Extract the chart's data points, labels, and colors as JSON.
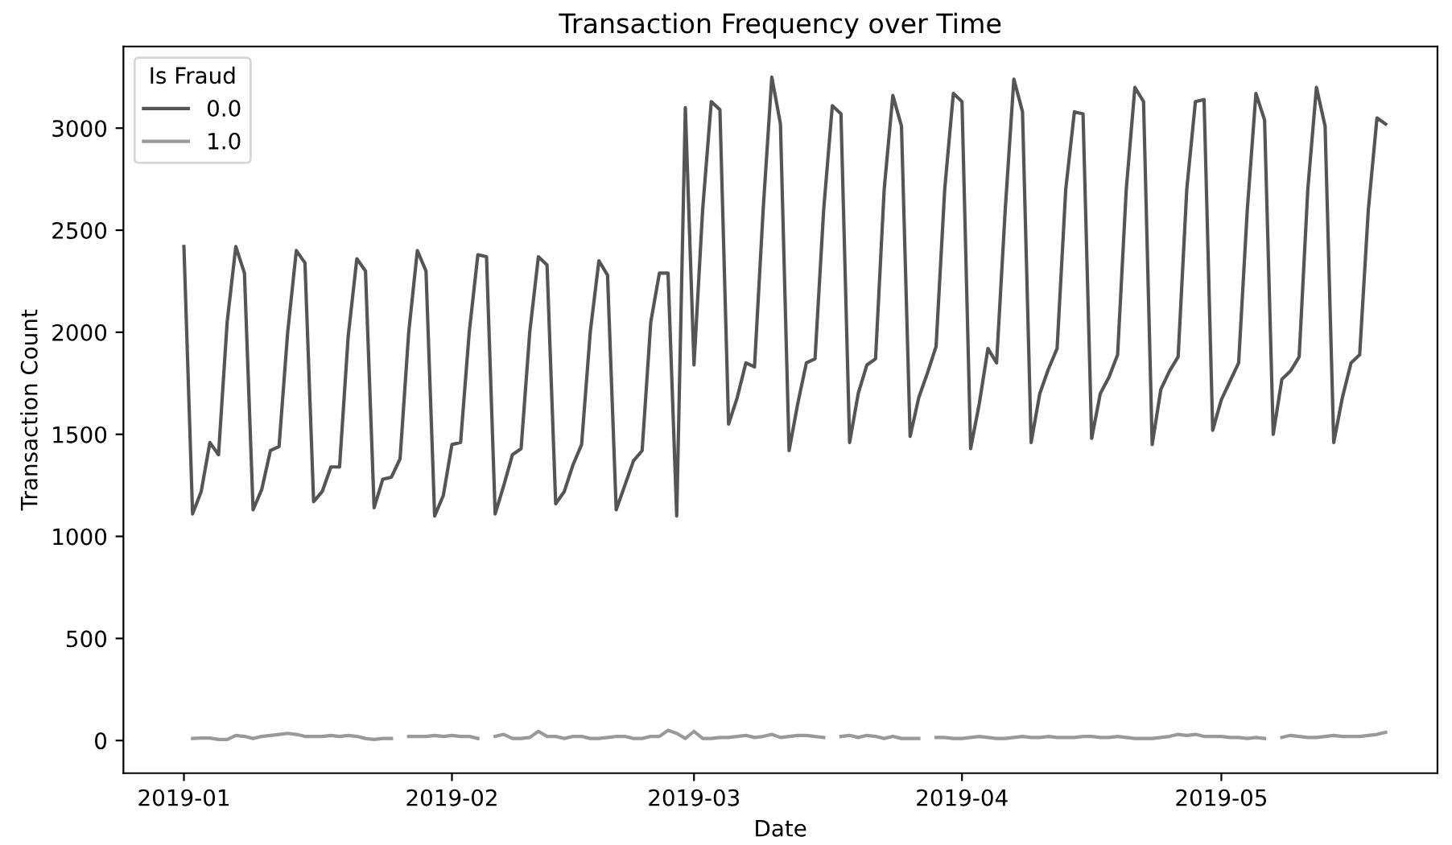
{
  "chart_data": {
    "type": "line",
    "title": "Transaction Frequency over Time",
    "xlabel": "Date",
    "ylabel": "Transaction Count",
    "legend_title": "Is Fraud",
    "legend": "top left",
    "grid": false,
    "x": [
      "2019-01-01",
      "2019-01-02",
      "2019-01-03",
      "2019-01-04",
      "2019-01-05",
      "2019-01-06",
      "2019-01-07",
      "2019-01-08",
      "2019-01-09",
      "2019-01-10",
      "2019-01-11",
      "2019-01-12",
      "2019-01-13",
      "2019-01-14",
      "2019-01-15",
      "2019-01-16",
      "2019-01-17",
      "2019-01-18",
      "2019-01-19",
      "2019-01-20",
      "2019-01-21",
      "2019-01-22",
      "2019-01-23",
      "2019-01-24",
      "2019-01-25",
      "2019-01-26",
      "2019-01-27",
      "2019-01-28",
      "2019-01-29",
      "2019-01-30",
      "2019-01-31",
      "2019-02-01",
      "2019-02-02",
      "2019-02-03",
      "2019-02-04",
      "2019-02-05",
      "2019-02-06",
      "2019-02-07",
      "2019-02-08",
      "2019-02-09",
      "2019-02-10",
      "2019-02-11",
      "2019-02-12",
      "2019-02-13",
      "2019-02-14",
      "2019-02-15",
      "2019-02-16",
      "2019-02-17",
      "2019-02-18",
      "2019-02-19",
      "2019-02-20",
      "2019-02-21",
      "2019-02-22",
      "2019-02-23",
      "2019-02-24",
      "2019-02-25",
      "2019-02-26",
      "2019-02-27",
      "2019-02-28",
      "2019-03-01",
      "2019-03-02",
      "2019-03-03",
      "2019-03-04",
      "2019-03-05",
      "2019-03-06",
      "2019-03-07",
      "2019-03-08",
      "2019-03-09",
      "2019-03-10",
      "2019-03-11",
      "2019-03-12",
      "2019-03-13",
      "2019-03-14",
      "2019-03-15",
      "2019-03-16",
      "2019-03-17",
      "2019-03-18",
      "2019-03-19",
      "2019-03-20",
      "2019-03-21",
      "2019-03-22",
      "2019-03-23",
      "2019-03-24",
      "2019-03-25",
      "2019-03-26",
      "2019-03-27",
      "2019-03-28",
      "2019-03-29",
      "2019-03-30",
      "2019-03-31",
      "2019-04-01",
      "2019-04-02",
      "2019-04-03",
      "2019-04-04",
      "2019-04-05",
      "2019-04-06",
      "2019-04-07",
      "2019-04-08",
      "2019-04-09",
      "2019-04-10",
      "2019-04-11",
      "2019-04-12",
      "2019-04-13",
      "2019-04-14",
      "2019-04-15",
      "2019-04-16",
      "2019-04-17",
      "2019-04-18",
      "2019-04-19",
      "2019-04-20",
      "2019-04-21",
      "2019-04-22",
      "2019-04-23",
      "2019-04-24",
      "2019-04-25",
      "2019-04-26",
      "2019-04-27",
      "2019-04-28",
      "2019-04-29",
      "2019-04-30",
      "2019-05-01",
      "2019-05-02",
      "2019-05-03",
      "2019-05-04",
      "2019-05-05",
      "2019-05-06",
      "2019-05-07",
      "2019-05-08",
      "2019-05-09",
      "2019-05-10",
      "2019-05-11",
      "2019-05-12",
      "2019-05-13",
      "2019-05-14",
      "2019-05-15",
      "2019-05-16",
      "2019-05-17",
      "2019-05-18",
      "2019-05-19",
      "2019-05-20"
    ],
    "series": [
      {
        "name": "0.0",
        "color": "#555555",
        "values": [
          2420,
          1110,
          1220,
          1460,
          1400,
          2050,
          2420,
          2290,
          1130,
          1230,
          1420,
          1440,
          2000,
          2400,
          2340,
          1170,
          1220,
          1340,
          1340,
          1980,
          2360,
          2300,
          1140,
          1280,
          1290,
          1380,
          2000,
          2400,
          2300,
          1100,
          1200,
          1450,
          1460,
          2000,
          2380,
          2370,
          1110,
          1250,
          1400,
          1430,
          2000,
          2370,
          2330,
          1160,
          1220,
          1350,
          1450,
          2000,
          2350,
          2280,
          1130,
          1250,
          1370,
          1420,
          2050,
          2290,
          2290,
          1100,
          3100,
          1840,
          2600,
          3130,
          3090,
          1550,
          1680,
          1850,
          1830,
          2600,
          3250,
          3020,
          1420,
          1650,
          1850,
          1870,
          2600,
          3110,
          3070,
          1460,
          1700,
          1840,
          1870,
          2700,
          3160,
          3010,
          1490,
          1680,
          1800,
          1930,
          2700,
          3170,
          3130,
          1430,
          1650,
          1920,
          1850,
          2600,
          3240,
          3080,
          1460,
          1700,
          1820,
          1920,
          2700,
          3080,
          3070,
          1480,
          1700,
          1780,
          1890,
          2700,
          3200,
          3130,
          1450,
          1720,
          1810,
          1880,
          2700,
          3130,
          3140,
          1520,
          1670,
          1760,
          1850,
          2600,
          3170,
          3040,
          1500,
          1770,
          1810,
          1880,
          2700,
          3200,
          3010,
          1460,
          1680,
          1850,
          1890,
          2600,
          3050,
          3020
        ]
      },
      {
        "name": "1.0",
        "color": "#999999",
        "values": [
          null,
          10,
          12,
          12,
          5,
          5,
          25,
          20,
          10,
          20,
          25,
          30,
          35,
          30,
          20,
          20,
          20,
          25,
          20,
          25,
          20,
          10,
          5,
          10,
          10,
          null,
          20,
          20,
          20,
          25,
          20,
          25,
          20,
          20,
          10,
          null,
          20,
          30,
          10,
          10,
          15,
          45,
          20,
          20,
          10,
          20,
          20,
          10,
          10,
          15,
          20,
          20,
          10,
          10,
          20,
          20,
          50,
          35,
          10,
          45,
          10,
          10,
          15,
          15,
          20,
          25,
          15,
          20,
          30,
          15,
          20,
          25,
          25,
          20,
          15,
          null,
          20,
          25,
          15,
          25,
          20,
          10,
          20,
          10,
          10,
          10,
          null,
          15,
          15,
          10,
          10,
          15,
          20,
          15,
          10,
          10,
          15,
          20,
          15,
          15,
          20,
          15,
          15,
          15,
          20,
          20,
          15,
          15,
          20,
          15,
          10,
          10,
          10,
          15,
          20,
          30,
          25,
          30,
          20,
          20,
          20,
          15,
          15,
          10,
          15,
          10,
          null,
          15,
          25,
          20,
          15,
          15,
          20,
          25,
          20,
          20,
          20,
          25,
          30,
          40
        ]
      }
    ],
    "xlim": [
      "2018-12-25",
      "2019-05-26"
    ],
    "xticks": [
      {
        "value": "2019-01-01",
        "label": "2019-01"
      },
      {
        "value": "2019-02-01",
        "label": "2019-02"
      },
      {
        "value": "2019-03-01",
        "label": "2019-03"
      },
      {
        "value": "2019-04-01",
        "label": "2019-04"
      },
      {
        "value": "2019-05-01",
        "label": "2019-05"
      }
    ],
    "ylim": [
      -160,
      3400
    ],
    "yticks": [
      0,
      500,
      1000,
      1500,
      2000,
      2500,
      3000
    ]
  }
}
